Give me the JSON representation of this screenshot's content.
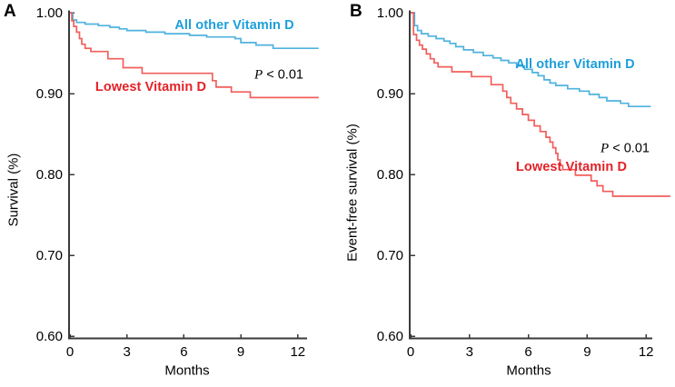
{
  "figure": {
    "background": "#ffffff",
    "description": "Two-panel Kaplan-Meier survival figure comparing Vitamin D groups"
  },
  "chart_data": [
    {
      "type": "line",
      "subtype": "kaplan-meier-step",
      "letter": "A",
      "xlabel": "Months",
      "ylabel": "Survival (%)",
      "xlim": [
        0,
        12.5
      ],
      "ylim": [
        0.6,
        1.0
      ],
      "xticks": [
        0,
        3,
        6,
        9,
        12
      ],
      "ytick_labels": [
        "1.00",
        "0.90",
        "0.80",
        "0.70",
        "0.60"
      ],
      "grid": false,
      "legend_position": "inline-annotations",
      "p_value": {
        "italic": "P",
        "rest": " < 0.01"
      },
      "series": [
        {
          "name": "All other Vitamin D",
          "text_color": "#1C9FDB",
          "line_color": "#4FB2DF",
          "steps": [
            [
              0,
              1.0
            ],
            [
              0.15,
              0.991
            ],
            [
              0.35,
              0.988
            ],
            [
              0.8,
              0.986
            ],
            [
              1.5,
              0.984
            ],
            [
              2.1,
              0.982
            ],
            [
              2.6,
              0.98
            ],
            [
              3.0,
              0.978
            ],
            [
              4.0,
              0.976
            ],
            [
              5.0,
              0.974
            ],
            [
              6.3,
              0.972
            ],
            [
              7.2,
              0.97
            ],
            [
              8.7,
              0.968
            ],
            [
              9.0,
              0.963
            ],
            [
              9.8,
              0.96
            ],
            [
              10.7,
              0.956
            ],
            [
              13.1,
              0.956
            ]
          ]
        },
        {
          "name": "Lowest Vitamin D",
          "text_color": "#E32228",
          "line_color": "#F15F5C",
          "steps": [
            [
              0,
              1.0
            ],
            [
              0.1,
              0.99
            ],
            [
              0.2,
              0.983
            ],
            [
              0.35,
              0.976
            ],
            [
              0.5,
              0.968
            ],
            [
              0.62,
              0.961
            ],
            [
              0.8,
              0.956
            ],
            [
              1.1,
              0.952
            ],
            [
              2.0,
              0.943
            ],
            [
              2.8,
              0.932
            ],
            [
              3.8,
              0.925
            ],
            [
              7.5,
              0.916
            ],
            [
              7.7,
              0.908
            ],
            [
              8.5,
              0.902
            ],
            [
              9.5,
              0.895
            ],
            [
              13.1,
              0.895
            ]
          ]
        }
      ]
    },
    {
      "type": "line",
      "subtype": "kaplan-meier-step",
      "letter": "B",
      "xlabel": "Months",
      "ylabel": "Event-free survival (%)",
      "xlim": [
        0,
        12.5
      ],
      "ylim": [
        0.6,
        1.0
      ],
      "xticks": [
        0,
        3,
        6,
        9,
        12
      ],
      "ytick_labels": [
        "1.00",
        "0.90",
        "0.80",
        "0.70",
        "0.60"
      ],
      "grid": false,
      "legend_position": "inline-annotations",
      "p_value": {
        "italic": "P",
        "rest": " < 0.01"
      },
      "series": [
        {
          "name": "All other Vitamin D",
          "text_color": "#1C9FDB",
          "line_color": "#4FB2DF",
          "steps": [
            [
              0,
              1.0
            ],
            [
              0.2,
              0.984
            ],
            [
              0.35,
              0.978
            ],
            [
              0.55,
              0.974
            ],
            [
              0.9,
              0.971
            ],
            [
              1.3,
              0.968
            ],
            [
              1.7,
              0.965
            ],
            [
              2.0,
              0.962
            ],
            [
              2.3,
              0.958
            ],
            [
              2.7,
              0.954
            ],
            [
              3.2,
              0.951
            ],
            [
              3.7,
              0.947
            ],
            [
              4.2,
              0.944
            ],
            [
              4.6,
              0.941
            ],
            [
              5.0,
              0.938
            ],
            [
              5.4,
              0.934
            ],
            [
              5.8,
              0.93
            ],
            [
              6.2,
              0.926
            ],
            [
              6.5,
              0.922
            ],
            [
              6.8,
              0.917
            ],
            [
              7.1,
              0.913
            ],
            [
              7.4,
              0.91
            ],
            [
              8.0,
              0.906
            ],
            [
              8.6,
              0.903
            ],
            [
              9.1,
              0.899
            ],
            [
              9.6,
              0.895
            ],
            [
              10.0,
              0.891
            ],
            [
              10.7,
              0.888
            ],
            [
              11.1,
              0.884
            ],
            [
              12.2,
              0.883
            ]
          ]
        },
        {
          "name": "Lowest Vitamin D",
          "text_color": "#E32228",
          "line_color": "#F15F5C",
          "steps": [
            [
              0,
              1.0
            ],
            [
              0.15,
              0.973
            ],
            [
              0.3,
              0.966
            ],
            [
              0.45,
              0.96
            ],
            [
              0.6,
              0.955
            ],
            [
              0.8,
              0.949
            ],
            [
              1.0,
              0.943
            ],
            [
              1.2,
              0.938
            ],
            [
              1.4,
              0.933
            ],
            [
              2.1,
              0.927
            ],
            [
              3.1,
              0.921
            ],
            [
              4.1,
              0.911
            ],
            [
              4.7,
              0.903
            ],
            [
              4.9,
              0.895
            ],
            [
              5.1,
              0.888
            ],
            [
              5.4,
              0.881
            ],
            [
              5.7,
              0.874
            ],
            [
              6.0,
              0.867
            ],
            [
              6.3,
              0.86
            ],
            [
              6.6,
              0.853
            ],
            [
              6.9,
              0.846
            ],
            [
              7.1,
              0.84
            ],
            [
              7.25,
              0.833
            ],
            [
              7.4,
              0.826
            ],
            [
              7.5,
              0.818
            ],
            [
              7.62,
              0.811
            ],
            [
              7.75,
              0.806
            ],
            [
              8.4,
              0.799
            ],
            [
              9.2,
              0.792
            ],
            [
              9.5,
              0.786
            ],
            [
              9.8,
              0.779
            ],
            [
              10.3,
              0.773
            ],
            [
              13.2,
              0.772
            ]
          ]
        }
      ]
    }
  ]
}
